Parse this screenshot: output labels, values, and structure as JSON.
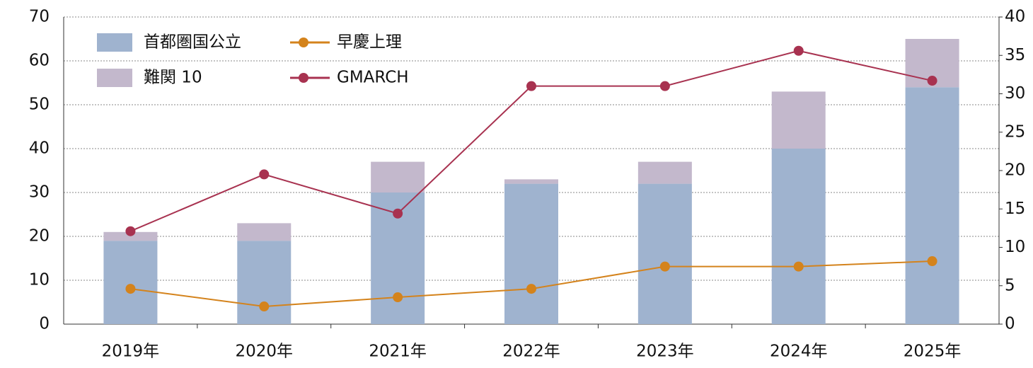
{
  "chart_data": {
    "type": "bar",
    "stacked": true,
    "grid": true,
    "categories": [
      "2019年",
      "2020年",
      "2021年",
      "2022年",
      "2023年",
      "2024年",
      "2025年"
    ],
    "series": [
      {
        "name": "首都圏国公立",
        "type": "bar",
        "color": "#9fb3cf",
        "values": [
          19,
          19,
          30,
          32,
          32,
          40,
          54
        ]
      },
      {
        "name": "難関 10",
        "type": "bar",
        "color": "#c3b8cc",
        "values": [
          2,
          4,
          7,
          1,
          5,
          13,
          11
        ]
      },
      {
        "name": "早慶上理",
        "type": "line",
        "axis": "y2",
        "color": "#d4831c",
        "values": [
          4.6,
          2.3,
          3.5,
          4.6,
          7.5,
          7.5,
          8.2
        ]
      },
      {
        "name": "GMARCH",
        "type": "line",
        "axis": "y2",
        "color": "#a83250",
        "values": [
          12.1,
          19.5,
          14.4,
          31.0,
          31.0,
          35.6,
          31.7
        ]
      }
    ],
    "ylim": [
      0,
      70
    ],
    "yticks": [
      0,
      10,
      20,
      30,
      40,
      50,
      60,
      70
    ],
    "y2lim": [
      0,
      40
    ],
    "y2ticks": [
      0,
      5,
      10,
      15,
      20,
      25,
      30,
      35,
      40
    ]
  }
}
